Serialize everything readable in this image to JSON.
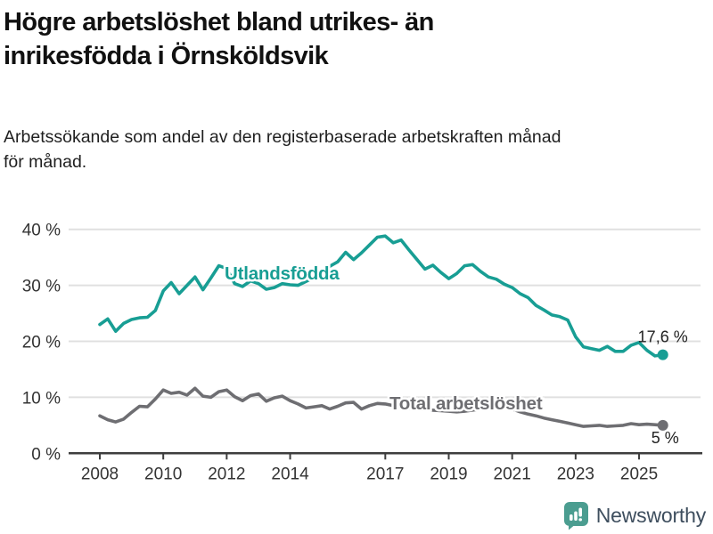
{
  "title": {
    "line1": "Högre arbetslöshet bland utrikes- än",
    "line2": "inrikesfödda i Örnsköldsvik"
  },
  "subtitle": {
    "line1": "Arbetssökande som andel av den registerbaserade arbetskraften månad",
    "line2": "för månad."
  },
  "footer": {
    "brand": "Newsworthy",
    "brand_icon": "newsworthy-speech-bubble-bar-chart-icon",
    "brand_icon_color": "#4b9d90",
    "brand_text_color": "#3e4e5e"
  },
  "colors": {
    "accent_teal": "#189e94",
    "series_gray": "#6e6e72",
    "grid": "#e0e0e0",
    "axis": "#3d3d3d",
    "tick_label": "#333333",
    "end_label": "#222222"
  },
  "chart_data": {
    "type": "line",
    "unit": "%",
    "grid": "horizontal",
    "legend_position": "inline-labels",
    "xlim": [
      2007.5,
      2026.3
    ],
    "ylim": [
      0,
      44
    ],
    "x_ticks": [
      {
        "value": 2008,
        "label": "2008"
      },
      {
        "value": 2010,
        "label": "2010"
      },
      {
        "value": 2012,
        "label": "2012"
      },
      {
        "value": 2014,
        "label": "2014"
      },
      {
        "value": 2017,
        "label": "2017"
      },
      {
        "value": 2019,
        "label": "2019"
      },
      {
        "value": 2021,
        "label": "2021"
      },
      {
        "value": 2023,
        "label": "2023"
      },
      {
        "value": 2025,
        "label": "2025"
      }
    ],
    "y_ticks": [
      {
        "value": 0,
        "label": "0 %"
      },
      {
        "value": 10,
        "label": "10 %"
      },
      {
        "value": 20,
        "label": "20 %"
      },
      {
        "value": 30,
        "label": "30 %"
      },
      {
        "value": 40,
        "label": "40 %"
      }
    ],
    "series": [
      {
        "name": "Utlandsfödda",
        "color": "#189e94",
        "end_label": "17,6 %",
        "end_value": 17.6,
        "points": [
          [
            2008.0,
            23.0
          ],
          [
            2008.25,
            24.0
          ],
          [
            2008.5,
            21.8
          ],
          [
            2008.75,
            23.2
          ],
          [
            2009.0,
            23.9
          ],
          [
            2009.25,
            24.2
          ],
          [
            2009.5,
            24.3
          ],
          [
            2009.75,
            25.5
          ],
          [
            2010.0,
            29.0
          ],
          [
            2010.25,
            30.5
          ],
          [
            2010.5,
            28.5
          ],
          [
            2010.75,
            30.0
          ],
          [
            2011.0,
            31.5
          ],
          [
            2011.25,
            29.2
          ],
          [
            2011.5,
            31.3
          ],
          [
            2011.75,
            33.5
          ],
          [
            2012.0,
            33.0
          ],
          [
            2012.25,
            30.3
          ],
          [
            2012.5,
            29.8
          ],
          [
            2012.75,
            30.8
          ],
          [
            2013.0,
            30.3
          ],
          [
            2013.25,
            29.3
          ],
          [
            2013.5,
            29.6
          ],
          [
            2013.75,
            30.3
          ],
          [
            2014.0,
            30.1
          ],
          [
            2014.25,
            30.0
          ],
          [
            2014.5,
            30.7
          ],
          [
            2014.75,
            31.4
          ],
          [
            2015.0,
            32.2
          ],
          [
            2015.25,
            33.4
          ],
          [
            2015.5,
            34.2
          ],
          [
            2015.75,
            35.9
          ],
          [
            2016.0,
            34.6
          ],
          [
            2016.25,
            35.8
          ],
          [
            2016.5,
            37.2
          ],
          [
            2016.75,
            38.6
          ],
          [
            2017.0,
            38.8
          ],
          [
            2017.25,
            37.6
          ],
          [
            2017.5,
            38.1
          ],
          [
            2017.75,
            36.3
          ],
          [
            2018.0,
            34.6
          ],
          [
            2018.25,
            32.9
          ],
          [
            2018.5,
            33.6
          ],
          [
            2018.75,
            32.3
          ],
          [
            2019.0,
            31.2
          ],
          [
            2019.25,
            32.1
          ],
          [
            2019.5,
            33.5
          ],
          [
            2019.75,
            33.7
          ],
          [
            2020.0,
            32.5
          ],
          [
            2020.25,
            31.5
          ],
          [
            2020.5,
            31.1
          ],
          [
            2020.75,
            30.2
          ],
          [
            2021.0,
            29.6
          ],
          [
            2021.25,
            28.5
          ],
          [
            2021.5,
            27.8
          ],
          [
            2021.75,
            26.4
          ],
          [
            2022.0,
            25.6
          ],
          [
            2022.25,
            24.7
          ],
          [
            2022.5,
            24.4
          ],
          [
            2022.75,
            23.8
          ],
          [
            2023.0,
            20.8
          ],
          [
            2023.25,
            19.0
          ],
          [
            2023.5,
            18.7
          ],
          [
            2023.75,
            18.4
          ],
          [
            2024.0,
            19.1
          ],
          [
            2024.25,
            18.2
          ],
          [
            2024.5,
            18.2
          ],
          [
            2024.75,
            19.3
          ],
          [
            2025.0,
            19.8
          ],
          [
            2025.25,
            18.4
          ],
          [
            2025.5,
            17.4
          ],
          [
            2025.75,
            17.6
          ]
        ]
      },
      {
        "name": "Total arbetslöshet",
        "color": "#6e6e72",
        "end_label": "5 %",
        "end_value": 5,
        "points": [
          [
            2008.0,
            6.7
          ],
          [
            2008.25,
            6.0
          ],
          [
            2008.5,
            5.6
          ],
          [
            2008.75,
            6.1
          ],
          [
            2009.0,
            7.3
          ],
          [
            2009.25,
            8.4
          ],
          [
            2009.5,
            8.3
          ],
          [
            2009.75,
            9.7
          ],
          [
            2010.0,
            11.3
          ],
          [
            2010.25,
            10.7
          ],
          [
            2010.5,
            10.9
          ],
          [
            2010.75,
            10.4
          ],
          [
            2011.0,
            11.6
          ],
          [
            2011.25,
            10.2
          ],
          [
            2011.5,
            10.0
          ],
          [
            2011.75,
            11.0
          ],
          [
            2012.0,
            11.3
          ],
          [
            2012.25,
            10.1
          ],
          [
            2012.5,
            9.4
          ],
          [
            2012.75,
            10.3
          ],
          [
            2013.0,
            10.6
          ],
          [
            2013.25,
            9.3
          ],
          [
            2013.5,
            9.9
          ],
          [
            2013.75,
            10.2
          ],
          [
            2014.0,
            9.4
          ],
          [
            2014.25,
            8.8
          ],
          [
            2014.5,
            8.1
          ],
          [
            2014.75,
            8.3
          ],
          [
            2015.0,
            8.5
          ],
          [
            2015.25,
            7.9
          ],
          [
            2015.5,
            8.4
          ],
          [
            2015.75,
            9.0
          ],
          [
            2016.0,
            9.1
          ],
          [
            2016.25,
            7.9
          ],
          [
            2016.5,
            8.5
          ],
          [
            2016.75,
            8.9
          ],
          [
            2017.0,
            8.8
          ],
          [
            2017.25,
            8.5
          ],
          [
            2017.5,
            8.3
          ],
          [
            2017.75,
            8.1
          ],
          [
            2018.0,
            8.0
          ],
          [
            2018.25,
            7.8
          ],
          [
            2018.5,
            7.7
          ],
          [
            2018.75,
            7.6
          ],
          [
            2019.0,
            7.5
          ],
          [
            2019.25,
            7.4
          ],
          [
            2019.5,
            7.5
          ],
          [
            2019.75,
            7.7
          ],
          [
            2020.0,
            7.9
          ],
          [
            2020.25,
            8.4
          ],
          [
            2020.5,
            8.6
          ],
          [
            2020.75,
            8.3
          ],
          [
            2021.0,
            7.9
          ],
          [
            2021.25,
            7.4
          ],
          [
            2021.5,
            7.0
          ],
          [
            2021.75,
            6.7
          ],
          [
            2022.0,
            6.3
          ],
          [
            2022.25,
            6.0
          ],
          [
            2022.5,
            5.7
          ],
          [
            2022.75,
            5.4
          ],
          [
            2023.0,
            5.1
          ],
          [
            2023.25,
            4.8
          ],
          [
            2023.5,
            4.9
          ],
          [
            2023.75,
            5.0
          ],
          [
            2024.0,
            4.8
          ],
          [
            2024.25,
            4.9
          ],
          [
            2024.5,
            5.0
          ],
          [
            2024.75,
            5.3
          ],
          [
            2025.0,
            5.1
          ],
          [
            2025.25,
            5.2
          ],
          [
            2025.5,
            5.1
          ],
          [
            2025.75,
            5.0
          ]
        ]
      }
    ]
  }
}
